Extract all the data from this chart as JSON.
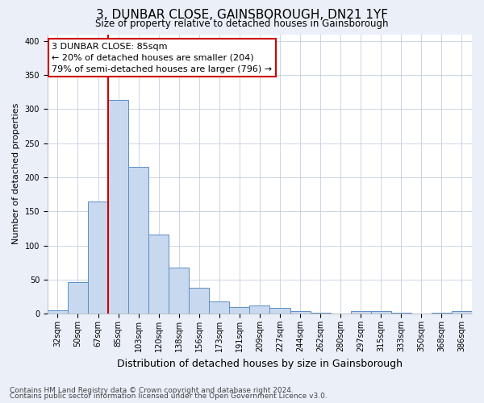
{
  "title": "3, DUNBAR CLOSE, GAINSBOROUGH, DN21 1YF",
  "subtitle": "Size of property relative to detached houses in Gainsborough",
  "xlabel": "Distribution of detached houses by size in Gainsborough",
  "ylabel": "Number of detached properties",
  "bar_labels": [
    "32sqm",
    "50sqm",
    "67sqm",
    "85sqm",
    "103sqm",
    "120sqm",
    "138sqm",
    "156sqm",
    "173sqm",
    "191sqm",
    "209sqm",
    "227sqm",
    "244sqm",
    "262sqm",
    "280sqm",
    "297sqm",
    "315sqm",
    "333sqm",
    "350sqm",
    "368sqm",
    "386sqm"
  ],
  "bar_heights": [
    5,
    46,
    165,
    313,
    215,
    116,
    68,
    38,
    18,
    10,
    12,
    8,
    3,
    1,
    0,
    3,
    3,
    1,
    0,
    1,
    3
  ],
  "bar_color": "#c8d9ef",
  "bar_edge_color": "#5b8ec4",
  "vline_color": "#cc0000",
  "annotation_line1": "3 DUNBAR CLOSE: 85sqm",
  "annotation_line2": "← 20% of detached houses are smaller (204)",
  "annotation_line3": "79% of semi-detached houses are larger (796) →",
  "annotation_box_color": "#ffffff",
  "annotation_box_edge": "#cc0000",
  "ylim": [
    0,
    410
  ],
  "yticks": [
    0,
    50,
    100,
    150,
    200,
    250,
    300,
    350,
    400
  ],
  "footer1": "Contains HM Land Registry data © Crown copyright and database right 2024.",
  "footer2": "Contains public sector information licensed under the Open Government Licence v3.0.",
  "bg_color": "#eaeff8",
  "plot_bg_color": "#ffffff",
  "title_fontsize": 11,
  "subtitle_fontsize": 8.5,
  "xlabel_fontsize": 9,
  "ylabel_fontsize": 8,
  "tick_fontsize": 7,
  "footer_fontsize": 6.5,
  "annotation_fontsize": 8
}
